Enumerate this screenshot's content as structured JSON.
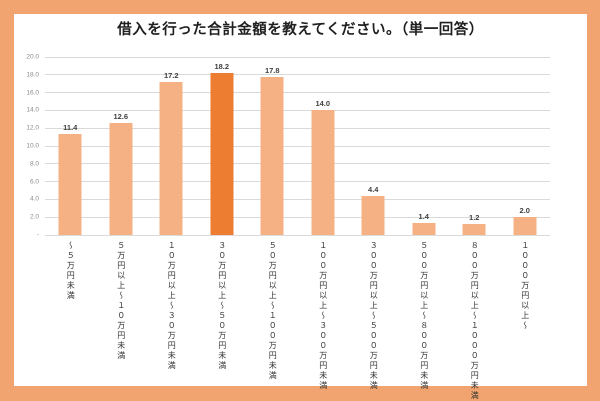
{
  "frame": {
    "border_color": "#F1A46F",
    "panel_background": "#FFFFFF"
  },
  "chart_data": {
    "type": "bar",
    "title": "借入を行った合計金額を教えてください。（単一回答）",
    "categories": [
      "～５万円未満",
      "５万円以上～１０万円未満",
      "１０万円以上～３０万円未満",
      "３０万円以上～５０万円未満",
      "５０万円以上～１００万円未満",
      "１００万円以上～３００万円未満",
      "３００万円以上～５００万円未満",
      "５００万円以上～８００万円未満",
      "８００万円以上～１０００万円未満",
      "１０００万円以上～"
    ],
    "values": [
      11.4,
      12.6,
      17.2,
      18.2,
      17.8,
      14.0,
      4.4,
      1.4,
      1.2,
      2.0
    ],
    "value_labels": [
      "11.4",
      "12.6",
      "17.2",
      "18.2",
      "17.8",
      "14.0",
      "4.4",
      "1.4",
      "1.2",
      "2.0"
    ],
    "highlight_index": 3,
    "xlabel": "",
    "ylabel": "",
    "ylim": [
      0,
      20
    ],
    "y_tick_step": 2,
    "y_tick_labels": [
      "20.0",
      "18.0",
      "16.0",
      "14.0",
      "12.0",
      "10.0",
      "8.0",
      "6.0",
      "4.0",
      "2.0",
      "-"
    ],
    "grid": true,
    "legend": "none",
    "x_label_orientation": "vertical",
    "bar_color": "#F5B183",
    "highlight_color": "#ED7D31",
    "gridline_color": "#DADADA"
  }
}
